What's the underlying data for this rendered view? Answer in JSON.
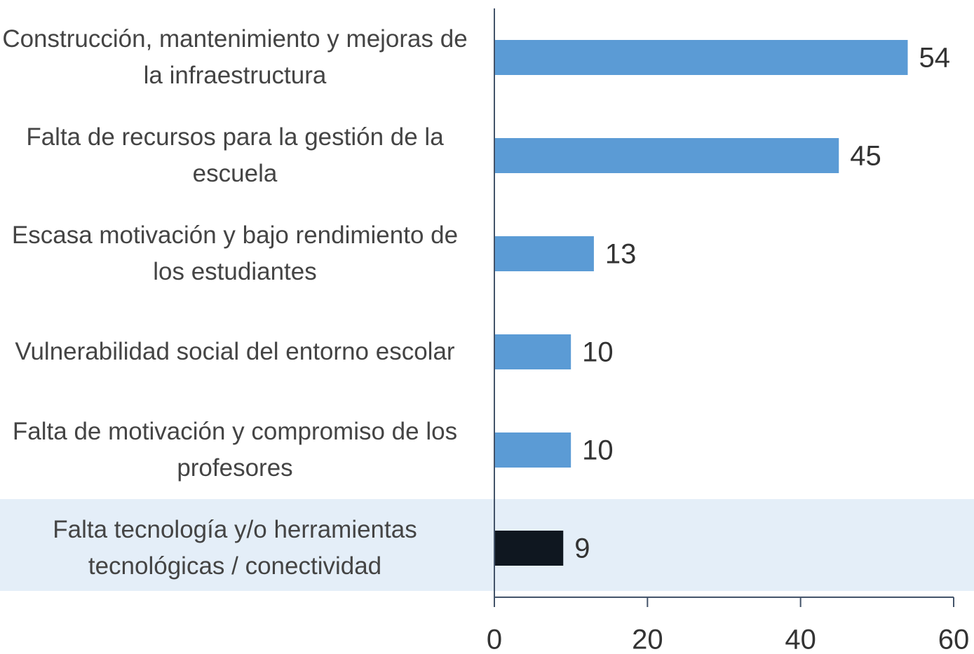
{
  "chart_data": {
    "type": "bar",
    "orientation": "horizontal",
    "categories": [
      "Construcción, mantenimiento y mejoras de la infraestructura",
      "Falta de recursos para la gestión de la escuela",
      "Escasa motivación y bajo rendimiento de los estudiantes",
      "Vulnerabilidad social del entorno escolar",
      "Falta de motivación y compromiso de los profesores",
      "Falta tecnología y/o herramientas tecnológicas / conectividad"
    ],
    "values": [
      54,
      45,
      13,
      10,
      10,
      9
    ],
    "colors": [
      "#5b9bd5",
      "#5b9bd5",
      "#5b9bd5",
      "#5b9bd5",
      "#5b9bd5",
      "#0f1720"
    ],
    "xlim": [
      0,
      60
    ],
    "xticks": [
      0,
      20,
      40,
      60
    ]
  }
}
